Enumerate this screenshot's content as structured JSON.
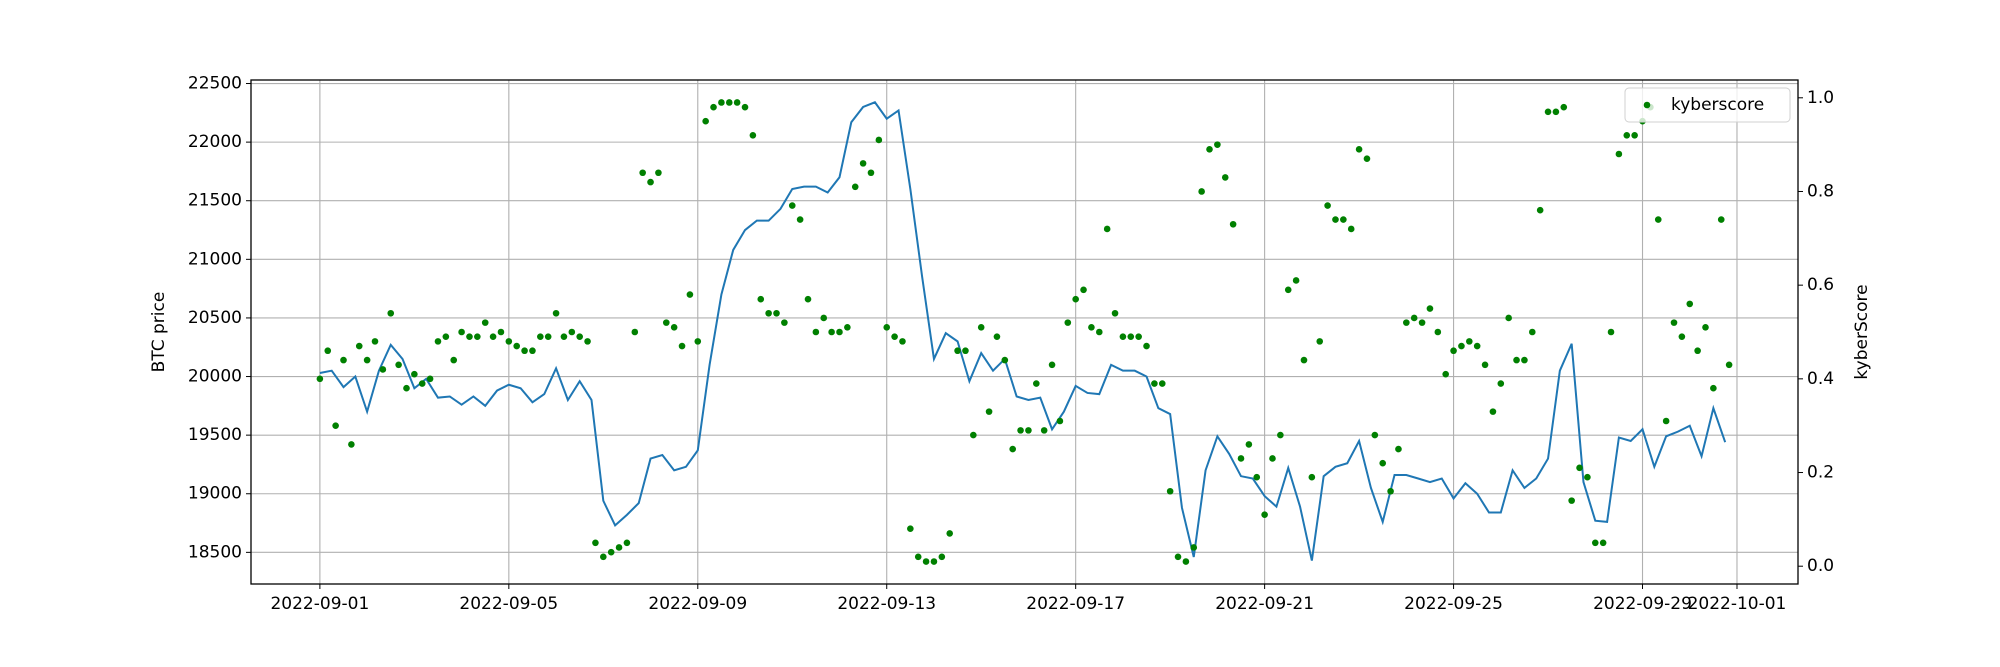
{
  "chart_data": {
    "type": "line",
    "y_label": "BTC price",
    "y2_label": "kyberScore",
    "grid": true,
    "legend": "upper right",
    "xlim": [
      "2022-08-30 13:00",
      "2022-10-02 07:00"
    ],
    "xticks": [
      "2022-09-01",
      "2022-09-05",
      "2022-09-09",
      "2022-09-13",
      "2022-09-17",
      "2022-09-21",
      "2022-09-25",
      "2022-09-29",
      "2022-10-01"
    ],
    "ylim": [
      18230,
      22530
    ],
    "yticks": [
      18500,
      19000,
      19500,
      20000,
      20500,
      21000,
      21500,
      22000,
      22500
    ],
    "y2lim": [
      -0.038,
      1.038
    ],
    "y2ticks": [
      {
        "value": 0,
        "label": "0.0"
      },
      0.2,
      0.4,
      0.6,
      0.8,
      {
        "value": 1,
        "label": "1.0"
      }
    ],
    "series": [
      {
        "type": "line",
        "color": "#1f77b4",
        "x": [
          "2022-09-01 00:00",
          "2022-09-01 06:00",
          "2022-09-01 12:00",
          "2022-09-01 18:00",
          "2022-09-02 00:00",
          "2022-09-02 06:00",
          "2022-09-02 12:00",
          "2022-09-02 18:00",
          "2022-09-03 00:00",
          "2022-09-03 06:00",
          "2022-09-03 12:00",
          "2022-09-03 18:00",
          "2022-09-04 00:00",
          "2022-09-04 06:00",
          "2022-09-04 12:00",
          "2022-09-04 18:00",
          "2022-09-05 00:00",
          "2022-09-05 06:00",
          "2022-09-05 12:00",
          "2022-09-05 18:00",
          "2022-09-06 00:00",
          "2022-09-06 06:00",
          "2022-09-06 12:00",
          "2022-09-06 18:00",
          "2022-09-07 00:00",
          "2022-09-07 06:00",
          "2022-09-07 12:00",
          "2022-09-07 18:00",
          "2022-09-08 00:00",
          "2022-09-08 06:00",
          "2022-09-08 12:00",
          "2022-09-08 18:00",
          "2022-09-09 00:00",
          "2022-09-09 06:00",
          "2022-09-09 12:00",
          "2022-09-09 18:00",
          "2022-09-10 00:00",
          "2022-09-10 06:00",
          "2022-09-10 12:00",
          "2022-09-10 18:00",
          "2022-09-11 00:00",
          "2022-09-11 06:00",
          "2022-09-11 12:00",
          "2022-09-11 18:00",
          "2022-09-12 00:00",
          "2022-09-12 06:00",
          "2022-09-12 12:00",
          "2022-09-12 18:00",
          "2022-09-13 00:00",
          "2022-09-13 06:00",
          "2022-09-13 12:00",
          "2022-09-13 18:00",
          "2022-09-14 00:00",
          "2022-09-14 06:00",
          "2022-09-14 12:00",
          "2022-09-14 18:00",
          "2022-09-15 00:00",
          "2022-09-15 06:00",
          "2022-09-15 12:00",
          "2022-09-15 18:00",
          "2022-09-16 00:00",
          "2022-09-16 06:00",
          "2022-09-16 12:00",
          "2022-09-16 18:00",
          "2022-09-17 00:00",
          "2022-09-17 06:00",
          "2022-09-17 12:00",
          "2022-09-17 18:00",
          "2022-09-18 00:00",
          "2022-09-18 06:00",
          "2022-09-18 12:00",
          "2022-09-18 18:00",
          "2022-09-19 00:00",
          "2022-09-19 06:00",
          "2022-09-19 12:00",
          "2022-09-19 18:00",
          "2022-09-20 00:00",
          "2022-09-20 06:00",
          "2022-09-20 12:00",
          "2022-09-20 18:00",
          "2022-09-21 00:00",
          "2022-09-21 06:00",
          "2022-09-21 12:00",
          "2022-09-21 18:00",
          "2022-09-22 00:00",
          "2022-09-22 06:00",
          "2022-09-22 12:00",
          "2022-09-22 18:00",
          "2022-09-23 00:00",
          "2022-09-23 06:00",
          "2022-09-23 12:00",
          "2022-09-23 18:00",
          "2022-09-24 00:00",
          "2022-09-24 06:00",
          "2022-09-24 12:00",
          "2022-09-24 18:00",
          "2022-09-25 00:00",
          "2022-09-25 06:00",
          "2022-09-25 12:00",
          "2022-09-25 18:00",
          "2022-09-26 00:00",
          "2022-09-26 06:00",
          "2022-09-26 12:00",
          "2022-09-26 18:00",
          "2022-09-27 00:00",
          "2022-09-27 06:00",
          "2022-09-27 12:00",
          "2022-09-27 18:00",
          "2022-09-28 00:00",
          "2022-09-28 06:00",
          "2022-09-28 12:00",
          "2022-09-28 18:00",
          "2022-09-29 00:00",
          "2022-09-29 06:00",
          "2022-09-29 12:00",
          "2022-09-29 18:00",
          "2022-09-30 00:00",
          "2022-09-30 06:00",
          "2022-09-30 12:00",
          "2022-09-30 18:00"
        ],
        "values": [
          20030,
          20050,
          19910,
          20000,
          19700,
          20050,
          20270,
          20150,
          19900,
          19980,
          19820,
          19830,
          19760,
          19830,
          19750,
          19880,
          19930,
          19900,
          19780,
          19850,
          20070,
          19800,
          19960,
          19800,
          18940,
          18730,
          18820,
          18920,
          19300,
          19330,
          19200,
          19230,
          19370,
          20100,
          20700,
          21080,
          21250,
          21330,
          21330,
          21430,
          21600,
          21620,
          21620,
          21570,
          21700,
          22170,
          22300,
          22340,
          22200,
          22270,
          21600,
          20850,
          20150,
          20370,
          20300,
          19960,
          20200,
          20050,
          20150,
          19830,
          19800,
          19820,
          19550,
          19700,
          19920,
          19860,
          19850,
          20100,
          20050,
          20050,
          20000,
          19730,
          19680,
          18880,
          18460,
          19200,
          19490,
          19340,
          19150,
          19130,
          18980,
          18890,
          19220,
          18890,
          18430,
          19150,
          19230,
          19260,
          19450,
          19050,
          18760,
          19160,
          19160,
          19130,
          19100,
          19130,
          18960,
          19090,
          19000,
          18840,
          18840,
          19200,
          19050,
          19130,
          19300,
          20050,
          20280,
          19100,
          18770,
          18760,
          19480,
          19450,
          19550,
          19230,
          19490,
          19530,
          19580,
          19320,
          19730,
          19440
        ]
      },
      {
        "type": "scatter",
        "name": "kyberscore",
        "color": "#008000",
        "axis": "y2",
        "x": [
          "2022-09-01 00:00",
          "2022-09-01 04:00",
          "2022-09-01 08:00",
          "2022-09-01 12:00",
          "2022-09-01 16:00",
          "2022-09-01 20:00",
          "2022-09-02 00:00",
          "2022-09-02 04:00",
          "2022-09-02 08:00",
          "2022-09-02 12:00",
          "2022-09-02 16:00",
          "2022-09-02 20:00",
          "2022-09-03 00:00",
          "2022-09-03 04:00",
          "2022-09-03 08:00",
          "2022-09-03 12:00",
          "2022-09-03 16:00",
          "2022-09-03 20:00",
          "2022-09-04 00:00",
          "2022-09-04 04:00",
          "2022-09-04 08:00",
          "2022-09-04 12:00",
          "2022-09-04 16:00",
          "2022-09-04 20:00",
          "2022-09-05 00:00",
          "2022-09-05 04:00",
          "2022-09-05 08:00",
          "2022-09-05 12:00",
          "2022-09-05 16:00",
          "2022-09-05 20:00",
          "2022-09-06 00:00",
          "2022-09-06 04:00",
          "2022-09-06 08:00",
          "2022-09-06 12:00",
          "2022-09-06 16:00",
          "2022-09-06 20:00",
          "2022-09-07 00:00",
          "2022-09-07 04:00",
          "2022-09-07 08:00",
          "2022-09-07 12:00",
          "2022-09-07 16:00",
          "2022-09-07 20:00",
          "2022-09-08 00:00",
          "2022-09-08 04:00",
          "2022-09-08 08:00",
          "2022-09-08 12:00",
          "2022-09-08 16:00",
          "2022-09-08 20:00",
          "2022-09-09 00:00",
          "2022-09-09 04:00",
          "2022-09-09 08:00",
          "2022-09-09 12:00",
          "2022-09-09 16:00",
          "2022-09-09 20:00",
          "2022-09-10 00:00",
          "2022-09-10 04:00",
          "2022-09-10 08:00",
          "2022-09-10 12:00",
          "2022-09-10 16:00",
          "2022-09-10 20:00",
          "2022-09-11 00:00",
          "2022-09-11 04:00",
          "2022-09-11 08:00",
          "2022-09-11 12:00",
          "2022-09-11 16:00",
          "2022-09-11 20:00",
          "2022-09-12 00:00",
          "2022-09-12 04:00",
          "2022-09-12 08:00",
          "2022-09-12 12:00",
          "2022-09-12 16:00",
          "2022-09-12 20:00",
          "2022-09-13 00:00",
          "2022-09-13 04:00",
          "2022-09-13 08:00",
          "2022-09-13 12:00",
          "2022-09-13 16:00",
          "2022-09-13 20:00",
          "2022-09-14 00:00",
          "2022-09-14 04:00",
          "2022-09-14 08:00",
          "2022-09-14 12:00",
          "2022-09-14 16:00",
          "2022-09-14 20:00",
          "2022-09-15 00:00",
          "2022-09-15 04:00",
          "2022-09-15 08:00",
          "2022-09-15 12:00",
          "2022-09-15 16:00",
          "2022-09-15 20:00",
          "2022-09-16 00:00",
          "2022-09-16 04:00",
          "2022-09-16 08:00",
          "2022-09-16 12:00",
          "2022-09-16 16:00",
          "2022-09-16 20:00",
          "2022-09-17 00:00",
          "2022-09-17 04:00",
          "2022-09-17 08:00",
          "2022-09-17 12:00",
          "2022-09-17 16:00",
          "2022-09-17 20:00",
          "2022-09-18 00:00",
          "2022-09-18 04:00",
          "2022-09-18 08:00",
          "2022-09-18 12:00",
          "2022-09-18 16:00",
          "2022-09-18 20:00",
          "2022-09-19 00:00",
          "2022-09-19 04:00",
          "2022-09-19 08:00",
          "2022-09-19 12:00",
          "2022-09-19 16:00",
          "2022-09-19 20:00",
          "2022-09-20 00:00",
          "2022-09-20 04:00",
          "2022-09-20 08:00",
          "2022-09-20 12:00",
          "2022-09-20 16:00",
          "2022-09-20 20:00",
          "2022-09-21 00:00",
          "2022-09-21 04:00",
          "2022-09-21 08:00",
          "2022-09-21 12:00",
          "2022-09-21 16:00",
          "2022-09-21 20:00",
          "2022-09-22 00:00",
          "2022-09-22 04:00",
          "2022-09-22 08:00",
          "2022-09-22 12:00",
          "2022-09-22 16:00",
          "2022-09-22 20:00",
          "2022-09-23 00:00",
          "2022-09-23 04:00",
          "2022-09-23 08:00",
          "2022-09-23 12:00",
          "2022-09-23 16:00",
          "2022-09-23 20:00",
          "2022-09-24 00:00",
          "2022-09-24 04:00",
          "2022-09-24 08:00",
          "2022-09-24 12:00",
          "2022-09-24 16:00",
          "2022-09-24 20:00",
          "2022-09-25 00:00",
          "2022-09-25 04:00",
          "2022-09-25 08:00",
          "2022-09-25 12:00",
          "2022-09-25 16:00",
          "2022-09-25 20:00",
          "2022-09-26 00:00",
          "2022-09-26 04:00",
          "2022-09-26 08:00",
          "2022-09-26 12:00",
          "2022-09-26 16:00",
          "2022-09-26 20:00",
          "2022-09-27 00:00",
          "2022-09-27 04:00",
          "2022-09-27 08:00",
          "2022-09-27 12:00",
          "2022-09-27 16:00",
          "2022-09-27 20:00",
          "2022-09-28 00:00",
          "2022-09-28 04:00",
          "2022-09-28 08:00",
          "2022-09-28 12:00",
          "2022-09-28 16:00",
          "2022-09-28 20:00",
          "2022-09-29 00:00",
          "2022-09-29 04:00",
          "2022-09-29 08:00",
          "2022-09-29 12:00",
          "2022-09-29 16:00",
          "2022-09-29 20:00",
          "2022-09-30 00:00",
          "2022-09-30 04:00",
          "2022-09-30 08:00",
          "2022-09-30 12:00",
          "2022-09-30 16:00",
          "2022-09-30 20:00"
        ],
        "values": [
          0.4,
          0.46,
          0.3,
          0.44,
          0.26,
          0.47,
          0.44,
          0.48,
          0.42,
          0.54,
          0.43,
          0.38,
          0.41,
          0.39,
          0.4,
          0.48,
          0.49,
          0.44,
          0.5,
          0.49,
          0.49,
          0.52,
          0.49,
          0.5,
          0.48,
          0.47,
          0.46,
          0.46,
          0.49,
          0.49,
          0.54,
          0.49,
          0.5,
          0.49,
          0.48,
          0.05,
          0.02,
          0.03,
          0.04,
          0.05,
          0.5,
          0.84,
          0.82,
          0.84,
          0.52,
          0.51,
          0.47,
          0.58,
          0.48,
          0.95,
          0.98,
          0.99,
          0.99,
          0.99,
          0.98,
          0.92,
          0.57,
          0.54,
          0.54,
          0.52,
          0.77,
          0.74,
          0.57,
          0.5,
          0.53,
          0.5,
          0.5,
          0.51,
          0.81,
          0.86,
          0.84,
          0.91,
          0.51,
          0.49,
          0.48,
          0.08,
          0.02,
          0.01,
          0.01,
          0.02,
          0.07,
          0.46,
          0.46,
          0.28,
          0.51,
          0.33,
          0.49,
          0.44,
          0.25,
          0.29,
          0.29,
          0.39,
          0.29,
          0.43,
          0.31,
          0.52,
          0.57,
          0.59,
          0.51,
          0.5,
          0.72,
          0.54,
          0.49,
          0.49,
          0.49,
          0.47,
          0.39,
          0.39,
          0.16,
          0.02,
          0.01,
          0.04,
          0.8,
          0.89,
          0.9,
          0.83,
          0.73,
          0.23,
          0.26,
          0.19,
          0.11,
          0.23,
          0.28,
          0.59,
          0.61,
          0.44,
          0.19,
          0.48,
          0.77,
          0.74,
          0.74,
          0.72,
          0.89,
          0.87,
          0.28,
          0.22,
          0.16,
          0.25,
          0.52,
          0.53,
          0.52,
          0.55,
          0.5,
          0.41,
          0.46,
          0.47,
          0.48,
          0.47,
          0.43,
          0.33,
          0.39,
          0.53,
          0.44,
          0.44,
          0.5,
          0.76,
          0.97,
          0.97,
          0.98,
          0.14,
          0.21,
          0.19,
          0.05,
          0.05,
          0.5,
          0.88,
          0.92,
          0.92,
          0.95,
          0.98,
          0.74,
          0.31,
          0.52,
          0.49,
          0.56,
          0.46,
          0.51,
          0.38,
          0.74,
          0.43
        ]
      }
    ]
  }
}
